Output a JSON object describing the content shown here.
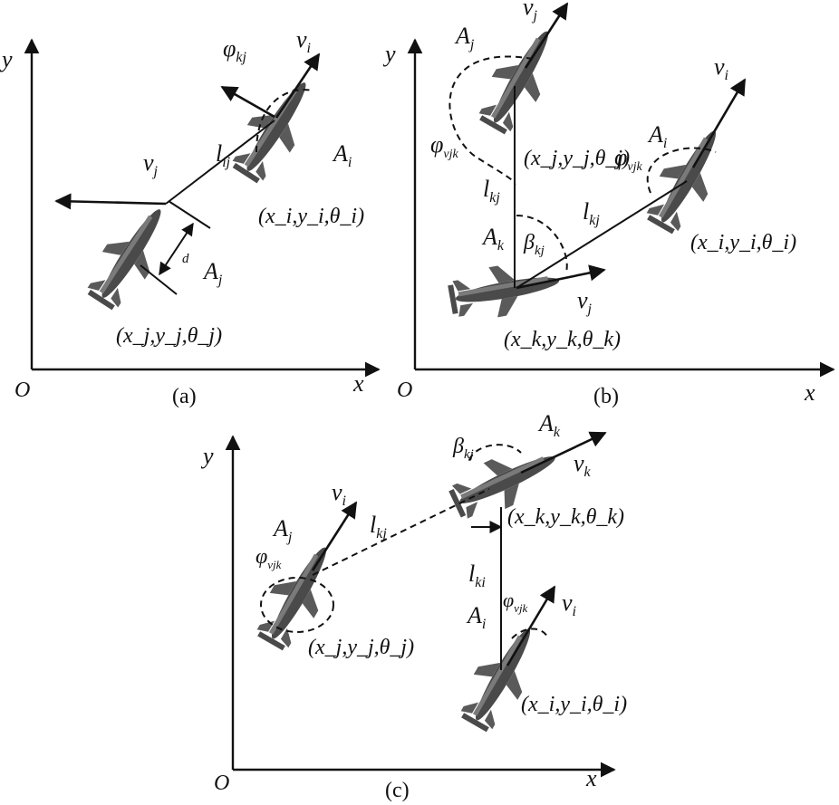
{
  "panels": {
    "a": {
      "caption": "(a)",
      "axis_x": "x",
      "axis_y": "y",
      "origin": "O",
      "v_i": "v",
      "v_i_sub": "i",
      "v_j": "v",
      "v_j_sub": "j",
      "phi": "φ",
      "phi_sub": "kj",
      "l": "l",
      "l_sub": "ij",
      "A_i": "A",
      "A_i_sub": "i",
      "A_j": "A",
      "A_j_sub": "j",
      "d": "d",
      "coord_i": "(x_i,y_i,θ_i)",
      "coord_j": "(x_j,y_j,θ_j)"
    },
    "b": {
      "caption": "(b)",
      "axis_x": "x",
      "axis_y": "y",
      "origin": "O",
      "v_j_top": "v",
      "v_j_top_sub": "j",
      "v_i": "v",
      "v_i_sub": "i",
      "v_j": "v",
      "v_j_sub": "j",
      "A_j": "A",
      "A_j_sub": "j",
      "A_i": "A",
      "A_i_sub": "i",
      "A_k": "A",
      "A_k_sub": "k",
      "phi_left": "φ",
      "phi_left_sub": "vjk",
      "phi_right": "φ",
      "phi_right_sub": "vjk",
      "l_kj_v": "l",
      "l_kj_v_sub": "kj",
      "l_kj": "l",
      "l_kj_sub": "kj",
      "beta": "β",
      "beta_sub": "kj",
      "coord_j": "(x_j,y_j,θ_j)",
      "coord_i": "(x_i,y_i,θ_i)",
      "coord_k": "(x_k,y_k,θ_k)"
    },
    "c": {
      "caption": "(c)",
      "axis_x": "x",
      "axis_y": "y",
      "origin": "O",
      "v_i_left": "v",
      "v_i_left_sub": "i",
      "v_k": "v",
      "v_k_sub": "k",
      "v_i": "v",
      "v_i_sub": "i",
      "A_j": "A",
      "A_j_sub": "j",
      "A_k": "A",
      "A_k_sub": "k",
      "A_i": "A",
      "A_i_sub": "i",
      "beta": "β",
      "beta_sub": "kj",
      "l_kj": "l",
      "l_kj_sub": "kj",
      "l_ki": "l",
      "l_ki_sub": "ki",
      "phi_left": "φ",
      "phi_left_sub": "vjk",
      "phi_right": "φ",
      "phi_right_sub": "vjk",
      "coord_k": "(x_k,y_k,θ_k)",
      "coord_j": "(x_j,y_j,θ_j)",
      "coord_i": "(x_i,y_i,θ_i)"
    }
  }
}
